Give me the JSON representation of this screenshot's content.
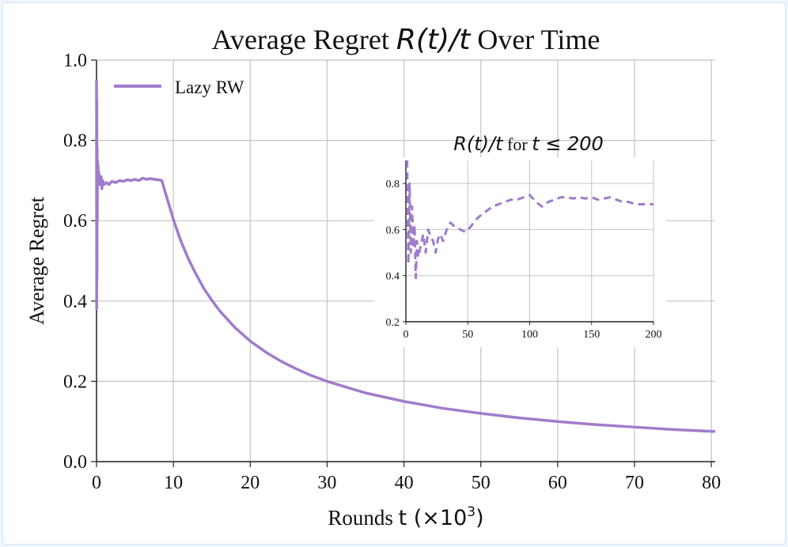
{
  "colors": {
    "series": "#a07ccb",
    "grid": "#c4c4c4",
    "axis": "#222222",
    "text": "#111111",
    "background": "#ffffff",
    "page": "#eef5fb"
  },
  "chart_data": [
    {
      "type": "line",
      "title": "Average Regret R(t)/t Over Time",
      "title_parts": {
        "prefix": "Average Regret ",
        "math": "R(t)/t",
        "suffix": " Over Time"
      },
      "xlabel": "Rounds t (×10³)",
      "xlabel_parts": {
        "prefix": "Rounds ",
        "math": "t (×10",
        "sup": "3",
        "close": ")"
      },
      "ylabel": "Average Regret",
      "xlim": [
        0,
        80.5
      ],
      "ylim": [
        0,
        1.0
      ],
      "xticks": [
        0,
        10,
        20,
        30,
        40,
        50,
        60,
        70,
        80
      ],
      "xtick_labels": [
        "0",
        "10",
        "20",
        "30",
        "40",
        "50",
        "60",
        "70",
        "80"
      ],
      "yticks": [
        0.0,
        0.2,
        0.4,
        0.6,
        0.8,
        1.0
      ],
      "ytick_labels": [
        "0.0",
        "0.2",
        "0.4",
        "0.6",
        "0.8",
        "1.0"
      ],
      "grid": true,
      "legend_position": "top-left",
      "series": [
        {
          "name": "Lazy RW",
          "style": "solid",
          "x": [
            0,
            0.02,
            0.04,
            0.06,
            0.08,
            0.1,
            0.12,
            0.15,
            0.2,
            0.25,
            0.3,
            0.4,
            0.5,
            0.6,
            0.7,
            0.8,
            1.0,
            1.3,
            1.6,
            2.0,
            2.5,
            3.0,
            3.5,
            4.0,
            4.5,
            5.0,
            5.5,
            6.0,
            6.5,
            7.0,
            7.5,
            8.0,
            8.5,
            9,
            10,
            11,
            12,
            13,
            14,
            15,
            16,
            18,
            20,
            22,
            24,
            26,
            28,
            30,
            35,
            40,
            45,
            50,
            55,
            60,
            65,
            70,
            75,
            80.5
          ],
          "values": [
            0.95,
            0.38,
            0.9,
            0.45,
            0.78,
            0.6,
            0.75,
            0.72,
            0.74,
            0.69,
            0.72,
            0.7,
            0.69,
            0.71,
            0.68,
            0.7,
            0.69,
            0.695,
            0.69,
            0.698,
            0.695,
            0.7,
            0.698,
            0.702,
            0.7,
            0.703,
            0.7,
            0.706,
            0.703,
            0.705,
            0.703,
            0.702,
            0.7,
            0.667,
            0.603,
            0.548,
            0.503,
            0.465,
            0.43,
            0.402,
            0.376,
            0.334,
            0.3,
            0.273,
            0.25,
            0.231,
            0.214,
            0.2,
            0.171,
            0.15,
            0.133,
            0.12,
            0.109,
            0.1,
            0.092,
            0.086,
            0.08,
            0.075
          ]
        }
      ]
    },
    {
      "type": "line",
      "title": "R(t)/t for t ≤ 200",
      "title_parts": {
        "math1": "R(t)/t",
        "word": " for ",
        "math2": "t ≤ 200"
      },
      "xlim": [
        0,
        200
      ],
      "ylim": [
        0.2,
        0.9
      ],
      "xticks": [
        0,
        50,
        100,
        150,
        200
      ],
      "xtick_labels": [
        "0",
        "50",
        "100",
        "150",
        "200"
      ],
      "yticks": [
        0.2,
        0.4,
        0.6,
        0.8
      ],
      "ytick_labels": [
        "0.2",
        "0.4",
        "0.6",
        "0.8"
      ],
      "grid": true,
      "series": [
        {
          "name": "Lazy RW (t ≤ 200)",
          "style": "dashed",
          "x": [
            1,
            2,
            3,
            4,
            5,
            6,
            7,
            8,
            9,
            10,
            12,
            14,
            16,
            18,
            20,
            22,
            24,
            26,
            28,
            30,
            33,
            36,
            40,
            44,
            48,
            52,
            56,
            60,
            65,
            70,
            75,
            80,
            85,
            90,
            95,
            100,
            105,
            110,
            115,
            120,
            125,
            130,
            135,
            140,
            145,
            150,
            155,
            160,
            165,
            170,
            175,
            180,
            185,
            190,
            195,
            200
          ],
          "values": [
            0.9,
            0.45,
            0.8,
            0.5,
            0.7,
            0.52,
            0.62,
            0.39,
            0.55,
            0.48,
            0.53,
            0.58,
            0.5,
            0.6,
            0.57,
            0.55,
            0.5,
            0.56,
            0.58,
            0.55,
            0.6,
            0.63,
            0.61,
            0.6,
            0.59,
            0.61,
            0.64,
            0.66,
            0.68,
            0.7,
            0.71,
            0.72,
            0.73,
            0.73,
            0.74,
            0.75,
            0.72,
            0.7,
            0.72,
            0.73,
            0.74,
            0.74,
            0.735,
            0.74,
            0.735,
            0.74,
            0.73,
            0.735,
            0.74,
            0.73,
            0.72,
            0.72,
            0.71,
            0.71,
            0.71,
            0.71
          ]
        }
      ]
    }
  ]
}
